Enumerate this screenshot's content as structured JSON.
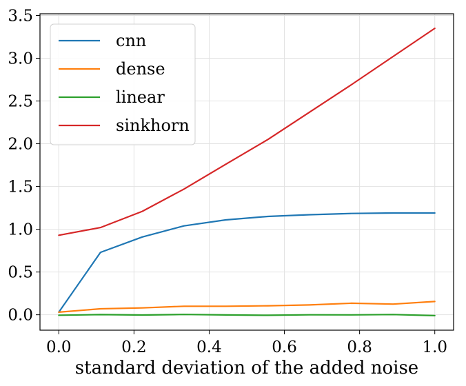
{
  "chart_data": {
    "type": "line",
    "title": "",
    "xlabel": "standard deviation of the added noise",
    "ylabel": "",
    "xlim": [
      -0.05,
      1.05
    ],
    "ylim": [
      -0.18,
      3.52
    ],
    "x_ticks": [
      0.0,
      0.2,
      0.4,
      0.6,
      0.8,
      1.0
    ],
    "x_tick_labels": [
      "0.0",
      "0.2",
      "0.4",
      "0.6",
      "0.8",
      "1.0"
    ],
    "y_ticks": [
      0.0,
      0.5,
      1.0,
      1.5,
      2.0,
      2.5,
      3.0,
      3.5
    ],
    "y_tick_labels": [
      "0.0",
      "0.5",
      "1.0",
      "1.5",
      "2.0",
      "2.5",
      "3.0",
      "3.5"
    ],
    "grid": true,
    "legend_position": "top-left",
    "x": [
      0.0,
      0.111,
      0.222,
      0.333,
      0.444,
      0.556,
      0.667,
      0.778,
      0.889,
      1.0
    ],
    "series": [
      {
        "name": "cnn",
        "color": "#1f77b4",
        "values": [
          0.03,
          0.73,
          0.91,
          1.04,
          1.11,
          1.15,
          1.17,
          1.185,
          1.19,
          1.19
        ]
      },
      {
        "name": "dense",
        "color": "#ff7f0e",
        "values": [
          0.03,
          0.07,
          0.08,
          0.1,
          0.1,
          0.105,
          0.115,
          0.135,
          0.125,
          0.155
        ]
      },
      {
        "name": "linear",
        "color": "#2ca02c",
        "values": [
          -0.005,
          0.002,
          -0.003,
          0.004,
          -0.002,
          -0.006,
          0.0,
          -0.001,
          0.003,
          -0.01
        ]
      },
      {
        "name": "sinkhorn",
        "color": "#d62728",
        "values": [
          0.93,
          1.02,
          1.21,
          1.47,
          1.76,
          2.05,
          2.37,
          2.69,
          3.02,
          3.35
        ]
      }
    ]
  }
}
